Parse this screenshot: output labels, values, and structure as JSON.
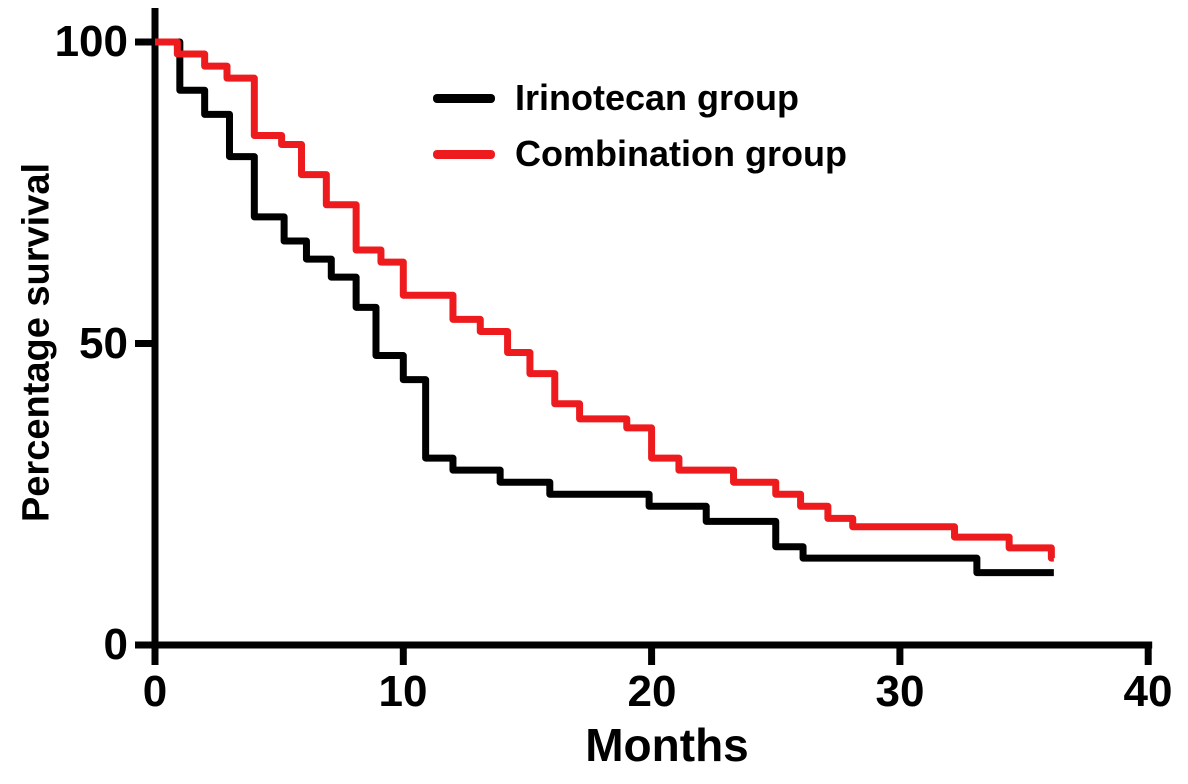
{
  "chart_data": {
    "type": "line",
    "variant": "kaplan_meier_step",
    "title": "",
    "xlabel": "Months",
    "ylabel": "Percentage survival",
    "xlim": [
      0,
      40
    ],
    "ylim": [
      0,
      100
    ],
    "x_ticks": [
      0,
      10,
      20,
      30,
      40
    ],
    "x_tick_labels": [
      "0",
      "10",
      "20",
      "30",
      "40"
    ],
    "y_ticks": [
      100,
      50,
      0
    ],
    "y_tick_labels": [
      "100",
      "50",
      "0"
    ],
    "grid": false,
    "legend_position": "upper-right-inside",
    "axis_color": "#000000",
    "background": "#ffffff",
    "series": [
      {
        "name": "Irinotecan group",
        "color": "#000000",
        "points": [
          [
            0,
            100
          ],
          [
            1,
            92
          ],
          [
            2,
            88
          ],
          [
            3,
            81
          ],
          [
            4,
            71
          ],
          [
            5.2,
            67
          ],
          [
            6.1,
            64
          ],
          [
            7.1,
            61
          ],
          [
            8.1,
            56
          ],
          [
            8.9,
            48
          ],
          [
            10,
            44
          ],
          [
            10.9,
            31
          ],
          [
            12,
            29
          ],
          [
            13.9,
            27
          ],
          [
            15.9,
            25
          ],
          [
            19.9,
            23
          ],
          [
            22.2,
            20.5
          ],
          [
            25,
            16.3
          ],
          [
            26.1,
            14.4
          ],
          [
            33.1,
            12
          ],
          [
            36.2,
            12
          ]
        ],
        "end_x": 36.2
      },
      {
        "name": "Combination group",
        "color": "#ee1b1e",
        "points": [
          [
            0,
            100
          ],
          [
            0.9,
            98
          ],
          [
            2,
            96
          ],
          [
            2.9,
            94
          ],
          [
            4,
            84.5
          ],
          [
            5.1,
            83
          ],
          [
            5.9,
            78
          ],
          [
            6.9,
            73
          ],
          [
            8.1,
            65.5
          ],
          [
            9.1,
            63.5
          ],
          [
            10,
            58
          ],
          [
            12,
            54
          ],
          [
            13.1,
            52
          ],
          [
            14.2,
            48.5
          ],
          [
            15.1,
            45
          ],
          [
            16.1,
            40
          ],
          [
            17.1,
            37.5
          ],
          [
            19,
            36
          ],
          [
            20,
            31
          ],
          [
            21.1,
            29
          ],
          [
            23.3,
            27
          ],
          [
            25,
            25
          ],
          [
            26,
            23
          ],
          [
            27.1,
            21
          ],
          [
            28.1,
            19.6
          ],
          [
            32.2,
            17.9
          ],
          [
            34.4,
            16.1
          ],
          [
            36.1,
            14.4
          ]
        ],
        "end_x": 36.2
      }
    ]
  }
}
